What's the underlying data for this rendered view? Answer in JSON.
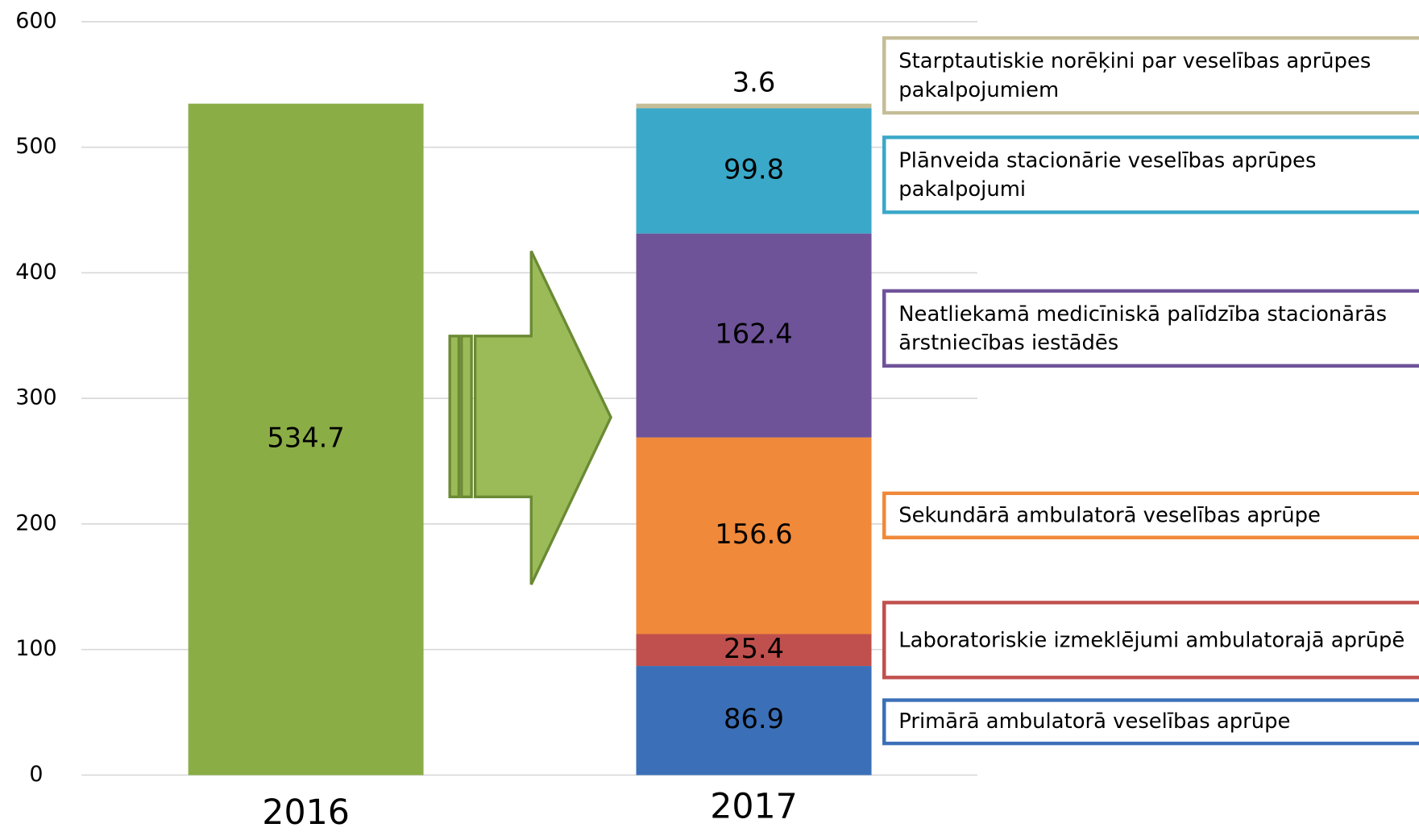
{
  "chart_data": {
    "type": "bar",
    "stacked": true,
    "categories": [
      "2016",
      "2017"
    ],
    "series": [
      {
        "color": "#8aad45",
        "values": [
          534.7,
          null
        ]
      },
      {
        "name": "Primārā ambulatorā veselības aprūpe",
        "color": "#3b70b8",
        "values": [
          null,
          86.9
        ]
      },
      {
        "name": "Laboratoriskie izmeklējumi ambulatorajā aprūpē",
        "color": "#c0504d",
        "values": [
          null,
          25.4
        ]
      },
      {
        "name": "Sekundārā ambulatorā veselības aprūpe",
        "color": "#f0893a",
        "values": [
          null,
          156.6
        ]
      },
      {
        "name": "Neatliekamā medicīniskā palīdzība stacionārās ārstniecības iestādēs",
        "color": "#6f5399",
        "values": [
          null,
          162.4
        ]
      },
      {
        "name": "Plānveida stacionārie veselības aprūpes pakalpojumi",
        "color": "#3aa8c8",
        "values": [
          null,
          99.8
        ]
      },
      {
        "name": "Starptautiskie norēķini par veselības aprūpes pakalpojumiem",
        "color": "#c4bd97",
        "values": [
          null,
          3.6
        ]
      }
    ],
    "ylim": [
      0,
      600
    ],
    "yticks": [
      0,
      100,
      200,
      300,
      400,
      500,
      600
    ],
    "grid": true
  }
}
